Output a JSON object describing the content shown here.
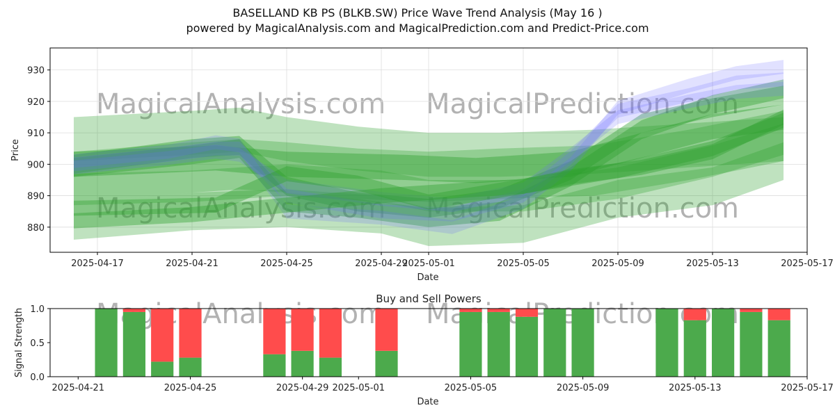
{
  "title": "BASELLAND KB PS (BLKB.SW) Price Wave Trend Analysis (May 16 )",
  "subtitle": "powered by MagicalAnalysis.com and MagicalPrediction.com and Predict-Price.com",
  "watermarks": [
    "MagicalAnalysis.com",
    "MagicalPrediction.com"
  ],
  "colors": {
    "green": "#2ca02c",
    "blue": "#6b6bff",
    "buy": "#4caa4c",
    "sell": "#ff4c4c",
    "grid": "#dddddd"
  },
  "chart_data": [
    {
      "type": "area",
      "xlabel": "Date",
      "ylabel": "Price",
      "xlim": [
        "2025-04-15",
        "2025-05-17"
      ],
      "ylim": [
        872,
        937
      ],
      "x_ticks": [
        "2025-04-17",
        "2025-04-21",
        "2025-04-25",
        "2025-04-29",
        "2025-05-01",
        "2025-05-05",
        "2025-05-09",
        "2025-05-13",
        "2025-05-17"
      ],
      "y_ticks": [
        880,
        890,
        900,
        910,
        920,
        930
      ],
      "grid": true,
      "series": [
        {
          "color": "green",
          "x": [
            "2025-04-16",
            "2025-04-21",
            "2025-04-23",
            "2025-04-25",
            "2025-04-28",
            "2025-05-01",
            "2025-05-04",
            "2025-05-08",
            "2025-05-12",
            "2025-05-16"
          ],
          "y": [
            908,
            910,
            911,
            908,
            905,
            903,
            903,
            904,
            906,
            908
          ],
          "band": 7
        },
        {
          "color": "green",
          "x": [
            "2025-04-16",
            "2025-04-21",
            "2025-04-23",
            "2025-04-25",
            "2025-04-28",
            "2025-05-01",
            "2025-05-04",
            "2025-05-08",
            "2025-05-12",
            "2025-05-16"
          ],
          "y": [
            896,
            899,
            900,
            899,
            897,
            896,
            897,
            898,
            903,
            909
          ],
          "band": 8
        },
        {
          "color": "green",
          "x": [
            "2025-04-16",
            "2025-04-21",
            "2025-04-25",
            "2025-04-29",
            "2025-05-01",
            "2025-05-05",
            "2025-05-09",
            "2025-05-13",
            "2025-05-16"
          ],
          "y": [
            882,
            885,
            886,
            884,
            880,
            881,
            889,
            893,
            901
          ],
          "band": 6
        },
        {
          "color": "green",
          "x": [
            "2025-04-16",
            "2025-04-21",
            "2025-04-25",
            "2025-04-29",
            "2025-05-01",
            "2025-05-05",
            "2025-05-09",
            "2025-05-13",
            "2025-05-16"
          ],
          "y": [
            892,
            893,
            895,
            893,
            890,
            890,
            894,
            901,
            908
          ],
          "band": 5
        },
        {
          "color": "green",
          "x": [
            "2025-04-16",
            "2025-04-22",
            "2025-04-25",
            "2025-04-30",
            "2025-05-03",
            "2025-05-07",
            "2025-05-10",
            "2025-05-13",
            "2025-05-16"
          ],
          "y": [
            900,
            902,
            900,
            899,
            898,
            900,
            906,
            912,
            915
          ],
          "band": 4
        },
        {
          "color": "green",
          "x": [
            "2025-04-16",
            "2025-04-21",
            "2025-04-23",
            "2025-04-25",
            "2025-04-28",
            "2025-05-01",
            "2025-05-04",
            "2025-05-07",
            "2025-05-10",
            "2025-05-13",
            "2025-05-16"
          ],
          "y": [
            900,
            905,
            906,
            893,
            888,
            886,
            889,
            898,
            913,
            918,
            922
          ],
          "band": 3
        },
        {
          "color": "green",
          "x": [
            "2025-04-16",
            "2025-04-21",
            "2025-04-23",
            "2025-04-25",
            "2025-04-28",
            "2025-05-01",
            "2025-05-04",
            "2025-05-07",
            "2025-05-10",
            "2025-05-13",
            "2025-05-16"
          ],
          "y": [
            899,
            903,
            905,
            888,
            886,
            883,
            885,
            896,
            911,
            919,
            924
          ],
          "band": 3
        },
        {
          "color": "blue",
          "x": [
            "2025-04-16",
            "2025-04-20",
            "2025-04-22",
            "2025-04-23",
            "2025-04-25",
            "2025-04-29",
            "2025-05-02",
            "2025-05-05",
            "2025-05-07",
            "2025-05-09",
            "2025-05-12",
            "2025-05-14",
            "2025-05-16"
          ],
          "y": [
            901,
            904,
            907,
            906,
            885,
            883,
            880,
            888,
            900,
            918,
            925,
            929,
            931
          ],
          "band": 2.2
        },
        {
          "color": "blue",
          "x": [
            "2025-04-16",
            "2025-04-20",
            "2025-04-22",
            "2025-04-23",
            "2025-04-25",
            "2025-04-29",
            "2025-05-02",
            "2025-05-05",
            "2025-05-07",
            "2025-05-09",
            "2025-05-12",
            "2025-05-14",
            "2025-05-16"
          ],
          "y": [
            900,
            903,
            905,
            905,
            890,
            885,
            884,
            890,
            902,
            917,
            922,
            926,
            927
          ],
          "band": 2.2
        },
        {
          "color": "blue",
          "x": [
            "2025-04-16",
            "2025-04-20",
            "2025-04-22",
            "2025-04-23",
            "2025-04-25",
            "2025-04-29",
            "2025-05-02",
            "2025-05-05",
            "2025-05-07",
            "2025-05-09",
            "2025-05-12",
            "2025-05-14",
            "2025-05-16"
          ],
          "y": [
            899,
            902,
            904,
            903,
            893,
            889,
            887,
            892,
            903,
            915,
            920,
            923,
            924
          ],
          "band": 2.2
        },
        {
          "color": "green",
          "x": [
            "2025-04-16",
            "2025-04-22",
            "2025-04-25",
            "2025-04-28",
            "2025-05-01",
            "2025-05-05",
            "2025-05-07",
            "2025-05-10",
            "2025-05-13",
            "2025-05-16"
          ],
          "y": [
            886,
            887,
            897,
            894,
            888,
            893,
            896,
            899,
            904,
            915
          ],
          "band": 2.4
        },
        {
          "color": "green",
          "x": [
            "2025-04-16",
            "2025-04-21",
            "2025-04-25",
            "2025-04-29",
            "2025-05-01",
            "2025-05-05",
            "2025-05-09",
            "2025-05-13",
            "2025-05-16"
          ],
          "y": [
            882,
            884,
            887,
            890,
            891,
            893,
            898,
            905,
            914
          ],
          "band": 2.4
        }
      ]
    },
    {
      "type": "bar",
      "title": "Buy and Sell Powers",
      "xlabel": "Date",
      "ylabel": "Signal Strength",
      "xlim": [
        "2025-04-20",
        "2025-05-17"
      ],
      "ylim": [
        0,
        1.0
      ],
      "x_ticks": [
        "2025-04-21",
        "2025-04-25",
        "2025-04-29",
        "2025-05-01",
        "2025-05-05",
        "2025-05-09",
        "2025-05-13",
        "2025-05-17"
      ],
      "y_ticks": [
        "0.0",
        "0.5",
        "1.0"
      ],
      "dates": [
        "2025-04-22",
        "2025-04-23",
        "2025-04-24",
        "2025-04-25",
        "2025-04-28",
        "2025-04-29",
        "2025-04-30",
        "2025-05-02",
        "2025-05-05",
        "2025-05-06",
        "2025-05-07",
        "2025-05-08",
        "2025-05-09",
        "2025-05-12",
        "2025-05-13",
        "2025-05-14",
        "2025-05-15",
        "2025-05-16"
      ],
      "series": [
        {
          "name": "Buy",
          "values": [
            1.0,
            0.95,
            0.22,
            0.28,
            0.33,
            0.38,
            0.28,
            0.38,
            0.95,
            0.95,
            0.88,
            1.0,
            1.0,
            1.0,
            0.83,
            1.0,
            0.95,
            0.83
          ]
        },
        {
          "name": "Sell",
          "values": [
            0.0,
            0.05,
            0.78,
            0.72,
            0.67,
            0.62,
            0.72,
            0.62,
            0.05,
            0.05,
            0.12,
            0.0,
            0.0,
            0.0,
            0.17,
            0.0,
            0.05,
            0.17
          ]
        }
      ]
    }
  ]
}
